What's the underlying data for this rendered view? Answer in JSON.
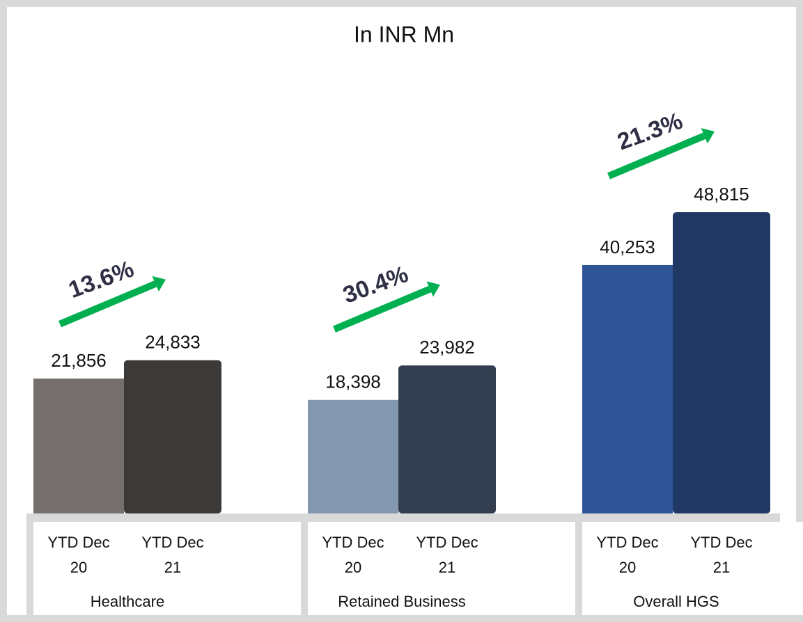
{
  "chart_data": {
    "type": "bar",
    "title": "In INR Mn",
    "categories": [
      "Healthcare",
      "Retained Business",
      "Overall HGS"
    ],
    "series": [
      {
        "name": "YTD Dec 20",
        "colors": [
          "#75706e",
          "#8497b0",
          "#2f5597"
        ],
        "values": [
          21856,
          18398,
          40253
        ],
        "value_labels": [
          "21,856",
          "18,398",
          "40,253"
        ]
      },
      {
        "name": "YTD Dec 21",
        "colors": [
          "#3b3a38",
          "#333f50",
          "#203864"
        ],
        "values": [
          24833,
          23982,
          48815
        ],
        "value_labels": [
          "24,833",
          "23,982",
          "48,815"
        ]
      }
    ],
    "annotations": [
      "13.6%",
      "30.4%",
      "21.3%"
    ],
    "annotation_color": "#00b050"
  }
}
